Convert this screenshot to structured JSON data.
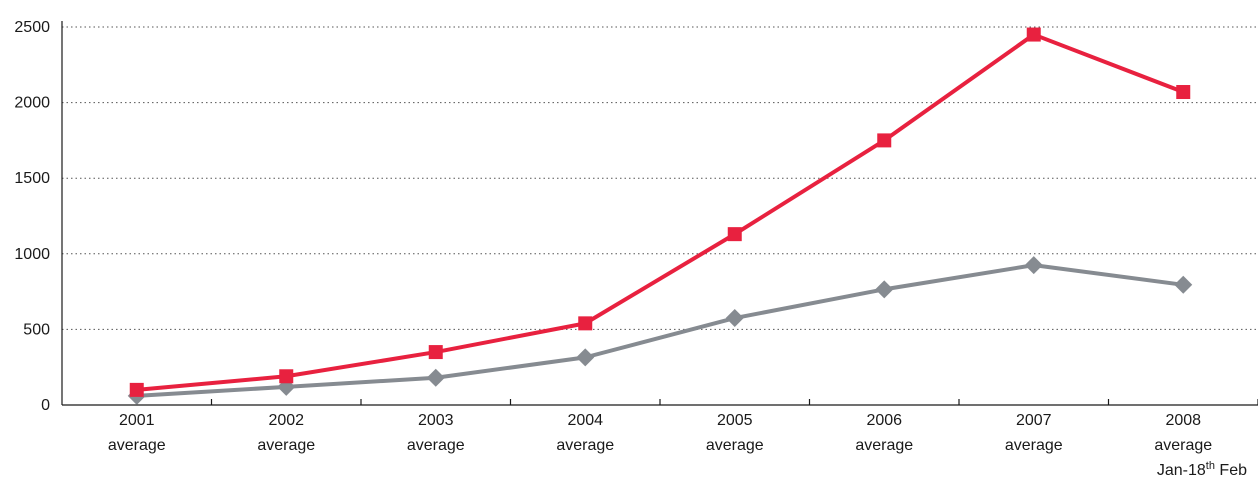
{
  "chart_data": {
    "type": "line",
    "title": "",
    "xlabel": "",
    "ylabel": "",
    "ylim": [
      0,
      2500
    ],
    "yticks": [
      0,
      500,
      1000,
      1500,
      2000,
      2500
    ],
    "grid": "horizontal-dotted",
    "legend": "none",
    "categories": [
      [
        "2001",
        "average"
      ],
      [
        "2002",
        "average"
      ],
      [
        "2003",
        "average"
      ],
      [
        "2004",
        "average"
      ],
      [
        "2005",
        "average"
      ],
      [
        "2006",
        "average"
      ],
      [
        "2007",
        "average"
      ],
      [
        "2008",
        "average"
      ]
    ],
    "category_note": {
      "pre": "Jan-18",
      "sup": "th",
      "post": " Feb"
    },
    "series": [
      {
        "color": "#e8213f",
        "marker": "square",
        "values": [
          100,
          190,
          350,
          540,
          1130,
          1750,
          2450,
          2070
        ]
      },
      {
        "color": "#868b91",
        "marker": "diamond",
        "values": [
          60,
          120,
          180,
          315,
          575,
          765,
          925,
          795
        ]
      }
    ]
  }
}
